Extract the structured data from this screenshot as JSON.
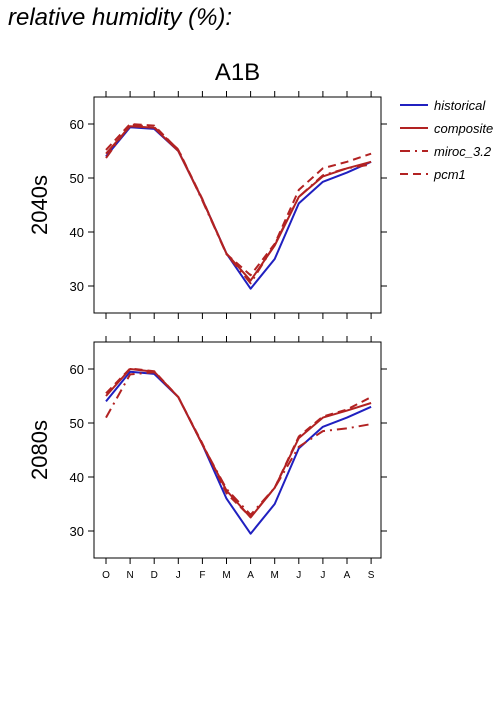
{
  "page_title": "relative humidity (%):",
  "chart_data": {
    "type": "line",
    "scenario": "A1B",
    "categories": [
      "O",
      "N",
      "D",
      "J",
      "F",
      "M",
      "A",
      "M",
      "J",
      "J",
      "A",
      "S"
    ],
    "ylim": [
      25,
      65
    ],
    "yticks": [
      30,
      40,
      50,
      60
    ],
    "grid": false,
    "legend_position": "top-right",
    "legend": [
      {
        "name": "historical",
        "color": "#2020c0",
        "dash": ""
      },
      {
        "name": "composite",
        "color": "#b22222",
        "dash": ""
      },
      {
        "name": "miroc_3.2",
        "color": "#b22222",
        "dash": "10,5,2,5"
      },
      {
        "name": "pcm1",
        "color": "#b22222",
        "dash": "8,5"
      }
    ],
    "panels": [
      {
        "label": "2040s",
        "series": [
          {
            "name": "historical",
            "values": [
              54.0,
              59.4,
              59.1,
              55.0,
              46.0,
              36.0,
              29.5,
              35.0,
              45.3,
              49.3,
              51.0,
              53.0
            ]
          },
          {
            "name": "composite",
            "values": [
              54.5,
              59.6,
              59.3,
              55.0,
              46.0,
              36.0,
              31.0,
              37.5,
              46.5,
              50.3,
              51.8,
              53.0
            ]
          },
          {
            "name": "miroc_3.2",
            "values": [
              53.7,
              59.9,
              59.4,
              55.3,
              45.8,
              35.9,
              30.5,
              37.7,
              46.5,
              50.5,
              51.8,
              52.5
            ]
          },
          {
            "name": "pcm1",
            "values": [
              55.2,
              60.0,
              59.7,
              55.2,
              46.1,
              35.9,
              32.0,
              37.8,
              47.8,
              51.8,
              53.0,
              54.5
            ]
          }
        ]
      },
      {
        "label": "2080s",
        "series": [
          {
            "name": "historical",
            "values": [
              54.0,
              59.5,
              59.1,
              54.8,
              46.0,
              36.0,
              29.5,
              35.0,
              45.3,
              49.3,
              51.0,
              53.0
            ]
          },
          {
            "name": "composite",
            "values": [
              55.0,
              60.0,
              59.5,
              54.8,
              46.0,
              37.5,
              32.5,
              38.0,
              47.2,
              51.0,
              52.3,
              53.7
            ]
          },
          {
            "name": "miroc_3.2",
            "values": [
              51.0,
              59.0,
              59.4,
              54.8,
              46.0,
              37.8,
              33.0,
              38.0,
              45.6,
              48.5,
              49.0,
              49.8
            ]
          },
          {
            "name": "pcm1",
            "values": [
              55.5,
              60.1,
              59.6,
              54.8,
              46.2,
              37.0,
              32.6,
              38.0,
              47.5,
              51.2,
              52.5,
              54.8
            ]
          }
        ]
      }
    ]
  }
}
